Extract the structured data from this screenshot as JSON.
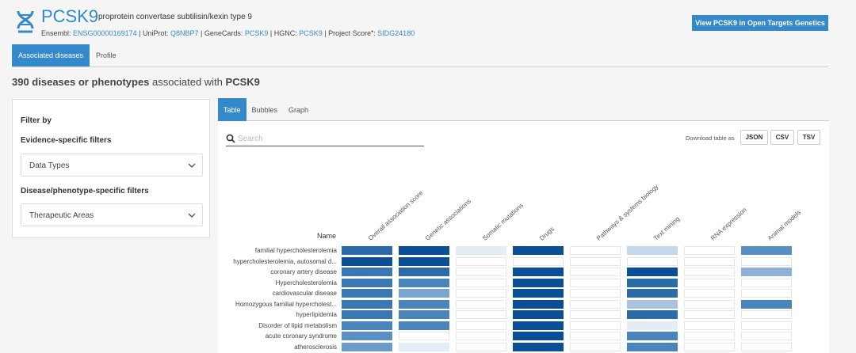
{
  "header": {
    "symbol": "PCSK9",
    "full_name": "proprotein convertase subtilisin/kexin type 9",
    "ids": [
      {
        "label": "Ensembl: ",
        "value": "ENSG00000169174"
      },
      {
        "label": " | UniProt: ",
        "value": "Q8NBP7"
      },
      {
        "label": " | GeneCards: ",
        "value": "PCSK9"
      },
      {
        "label": " | HGNC: ",
        "value": "PCSK9"
      },
      {
        "label": " | Project Score",
        "value": "SIDG24180"
      }
    ],
    "ot_genetics_button": "View PCSK9 in Open Targets Genetics"
  },
  "top_tabs": [
    "Associated diseases",
    "Profile"
  ],
  "heading": {
    "count_text": "390 diseases or phenotypes",
    "middle": " associated with ",
    "gene": "PCSK9"
  },
  "filter": {
    "title": "Filter by",
    "evidence_title": "Evidence-specific filters",
    "data_types": "Data Types",
    "disease_title": "Disease/phenotype-specific filters",
    "therapeutic_areas": "Therapeutic Areas"
  },
  "main_tabs": [
    "Table",
    "Bubbles",
    "Graph"
  ],
  "search": {
    "placeholder": "Search"
  },
  "download": {
    "label": "Download table as",
    "buttons": [
      "JSON",
      "CSV",
      "TSV"
    ]
  },
  "table": {
    "name_header": "Name",
    "columns": [
      "Overall association score",
      "Genetic associations",
      "Somatic mutations",
      "Drugs",
      "Pathways & systems biology",
      "Text mining",
      "RNA expression",
      "Animal models"
    ],
    "rows": [
      {
        "name": "familial hypercholesterolemia",
        "cells": [
          "#2b6ca8",
          "#0a4f96",
          "#e3edf6",
          "#0a4f96",
          "#fff",
          "#c5d8eb",
          "#fff",
          "#5a8fc3"
        ]
      },
      {
        "name": "hypercholesterolemia, autosomal d...",
        "cells": [
          "#0a4f96",
          "#0a4f96",
          "#fff",
          "#fff",
          "#fff",
          "#fff",
          "#fff",
          "#fff"
        ]
      },
      {
        "name": "coronary artery disease",
        "cells": [
          "#3a78b5",
          "#2b6ca8",
          "#fff",
          "#0a4f96",
          "#fff",
          "#0a4f96",
          "#fff",
          "#8db1d7"
        ]
      },
      {
        "name": "Hypercholesterolemia",
        "cells": [
          "#3a78b5",
          "#4a84bd",
          "#fff",
          "#0a4f96",
          "#fff",
          "#2b6ca8",
          "#fff",
          "#fff"
        ]
      },
      {
        "name": "cardiovascular disease",
        "cells": [
          "#3a78b5",
          "#7aa5d0",
          "#fff",
          "#0a4f96",
          "#fff",
          "#2b6ca8",
          "#fff",
          "#fff"
        ]
      },
      {
        "name": "Homozygous familial hypercholest...",
        "cells": [
          "#3a78b5",
          "#4a84bd",
          "#fff",
          "#0a4f96",
          "#fff",
          "#a9c4e1",
          "#fff",
          "#4a84bd"
        ]
      },
      {
        "name": "hyperlipidemia",
        "cells": [
          "#3a78b5",
          "#4a84bd",
          "#fff",
          "#0a4f96",
          "#fff",
          "#2b6ca8",
          "#fff",
          "#fff"
        ]
      },
      {
        "name": "Disorder of lipid metabolism",
        "cells": [
          "#4a84bd",
          "#4a84bd",
          "#fff",
          "#0a4f96",
          "#fff",
          "#e3edf6",
          "#fff",
          "#fff"
        ]
      },
      {
        "name": "acute coronary syndrome",
        "cells": [
          "#5a8fc3",
          "#fff",
          "#fff",
          "#0a4f96",
          "#fff",
          "#4a84bd",
          "#fff",
          "#fff"
        ]
      },
      {
        "name": "atherosclerosis",
        "cells": [
          "#6b9bca",
          "#e3edf6",
          "#fff",
          "#0a4f96",
          "#fff",
          "#4a84bd",
          "#fff",
          "#fff"
        ]
      }
    ]
  },
  "colors": {
    "accent": "#3489ca",
    "dark_cell": "#0a4f96"
  }
}
